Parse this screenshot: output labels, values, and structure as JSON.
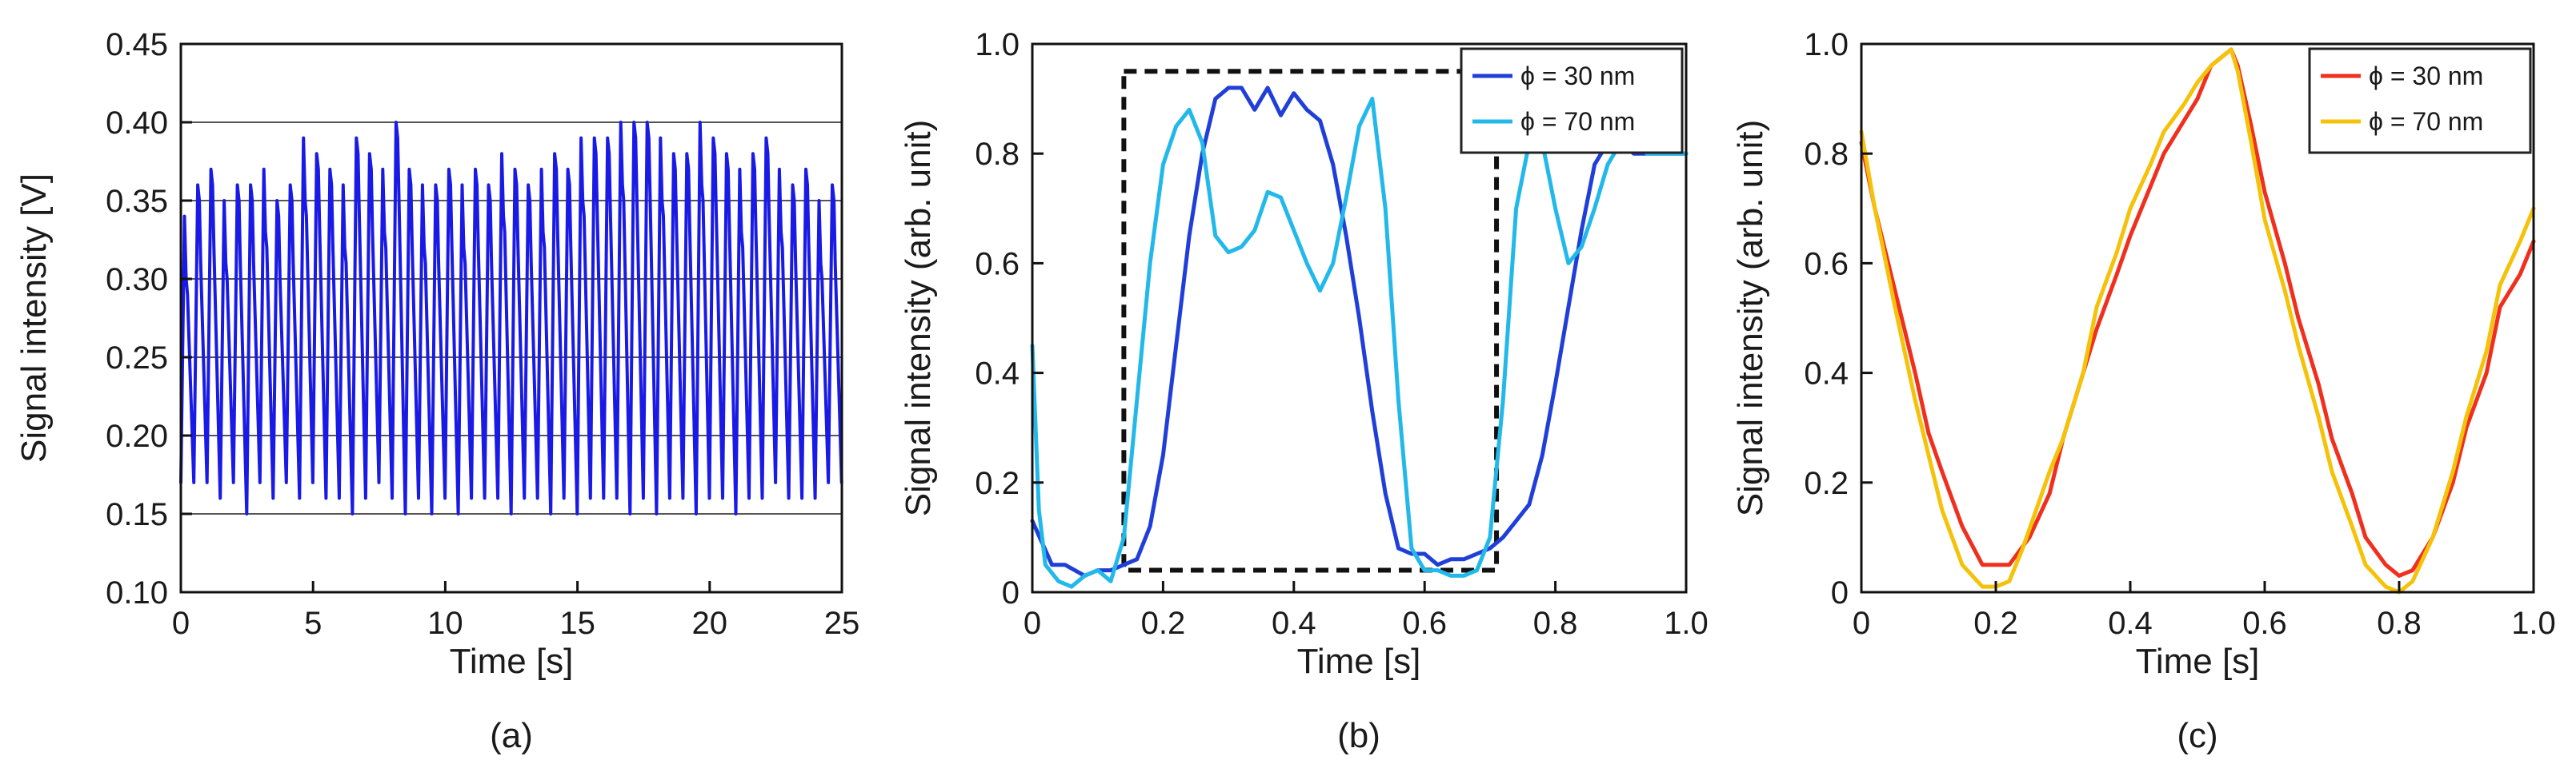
{
  "chart_data": [
    {
      "type": "line",
      "panel_label": "(a)",
      "xlabel": "Time [s]",
      "ylabel": "Signal intensity [V]",
      "xlim": [
        0,
        25
      ],
      "ylim": [
        0.1,
        0.45
      ],
      "xticks": [
        0,
        5,
        10,
        15,
        20,
        25
      ],
      "xtick_labels": [
        "0",
        "5",
        "10",
        "15",
        "20",
        "25"
      ],
      "yticks": [
        0.1,
        0.15,
        0.2,
        0.25,
        0.3,
        0.35,
        0.4,
        0.45
      ],
      "ytick_labels": [
        "0.10",
        "0.15",
        "0.20",
        "0.25",
        "0.30",
        "0.35",
        "0.40",
        "0.45"
      ],
      "grid": "horizontal",
      "series": [
        {
          "name": "signal",
          "color": "#1a1ae6",
          "period": 0.5,
          "maxima": [
            0.34,
            0.36,
            0.37,
            0.35,
            0.36,
            0.36,
            0.37,
            0.35,
            0.36,
            0.39,
            0.38,
            0.37,
            0.36,
            0.39,
            0.38,
            0.37,
            0.4,
            0.37,
            0.36,
            0.36,
            0.37,
            0.36,
            0.37,
            0.36,
            0.38,
            0.37,
            0.36,
            0.37,
            0.38,
            0.37,
            0.39,
            0.39,
            0.39,
            0.4,
            0.4,
            0.4,
            0.39,
            0.38,
            0.38,
            0.4,
            0.39,
            0.38,
            0.37,
            0.38,
            0.39,
            0.37,
            0.36,
            0.37,
            0.35,
            0.36
          ],
          "minima": [
            0.17,
            0.17,
            0.16,
            0.17,
            0.15,
            0.17,
            0.16,
            0.17,
            0.16,
            0.17,
            0.16,
            0.16,
            0.15,
            0.16,
            0.17,
            0.16,
            0.15,
            0.16,
            0.15,
            0.16,
            0.15,
            0.16,
            0.16,
            0.16,
            0.15,
            0.16,
            0.16,
            0.15,
            0.16,
            0.15,
            0.16,
            0.16,
            0.16,
            0.15,
            0.16,
            0.15,
            0.16,
            0.16,
            0.15,
            0.16,
            0.16,
            0.15,
            0.16,
            0.16,
            0.17,
            0.16,
            0.16,
            0.16,
            0.17,
            0.17
          ]
        }
      ]
    },
    {
      "type": "line",
      "panel_label": "(b)",
      "xlabel": "Time [s]",
      "ylabel": "Signal intensity (arb. unit)",
      "xlim": [
        0,
        1.0
      ],
      "ylim": [
        0,
        1.0
      ],
      "xticks": [
        0,
        0.2,
        0.4,
        0.6,
        0.8,
        1.0
      ],
      "xtick_labels": [
        "0",
        "0.2",
        "0.4",
        "0.6",
        "0.8",
        "1.0"
      ],
      "yticks": [
        0,
        0.2,
        0.4,
        0.6,
        0.8,
        1.0
      ],
      "ytick_labels": [
        "0",
        "0.2",
        "0.4",
        "0.6",
        "0.8",
        "1.0"
      ],
      "legend": "top-right",
      "series": [
        {
          "name": "ϕ = 30 nm",
          "color": "#1f3fd8",
          "x": [
            0,
            0.03,
            0.05,
            0.08,
            0.1,
            0.12,
            0.14,
            0.16,
            0.18,
            0.2,
            0.22,
            0.24,
            0.26,
            0.28,
            0.3,
            0.32,
            0.34,
            0.36,
            0.38,
            0.4,
            0.42,
            0.44,
            0.46,
            0.48,
            0.5,
            0.52,
            0.54,
            0.56,
            0.58,
            0.6,
            0.62,
            0.64,
            0.66,
            0.68,
            0.7,
            0.72,
            0.74,
            0.76,
            0.78,
            0.8,
            0.82,
            0.84,
            0.86,
            0.88,
            0.9,
            0.92,
            0.94,
            0.96,
            0.98,
            1.0
          ],
          "y": [
            0.13,
            0.05,
            0.05,
            0.03,
            0.04,
            0.04,
            0.05,
            0.06,
            0.12,
            0.25,
            0.45,
            0.65,
            0.8,
            0.9,
            0.92,
            0.92,
            0.88,
            0.92,
            0.87,
            0.91,
            0.88,
            0.86,
            0.78,
            0.65,
            0.5,
            0.33,
            0.18,
            0.08,
            0.07,
            0.07,
            0.05,
            0.06,
            0.06,
            0.07,
            0.08,
            0.1,
            0.13,
            0.16,
            0.25,
            0.38,
            0.52,
            0.66,
            0.78,
            0.82,
            0.82,
            0.8,
            0.8,
            0.8,
            0.8,
            0.8
          ]
        },
        {
          "name": "ϕ = 70 nm",
          "color": "#23b8ea",
          "x": [
            0,
            0.01,
            0.02,
            0.04,
            0.06,
            0.08,
            0.1,
            0.12,
            0.14,
            0.16,
            0.18,
            0.2,
            0.22,
            0.24,
            0.26,
            0.28,
            0.3,
            0.32,
            0.34,
            0.36,
            0.38,
            0.4,
            0.42,
            0.44,
            0.46,
            0.48,
            0.5,
            0.52,
            0.54,
            0.56,
            0.58,
            0.6,
            0.62,
            0.64,
            0.66,
            0.68,
            0.7,
            0.72,
            0.74,
            0.76,
            0.78,
            0.8,
            0.82,
            0.84,
            0.86,
            0.88,
            0.9,
            0.92,
            0.94,
            0.96,
            0.98,
            1.0
          ],
          "y": [
            0.45,
            0.15,
            0.05,
            0.02,
            0.01,
            0.03,
            0.04,
            0.02,
            0.1,
            0.35,
            0.6,
            0.78,
            0.85,
            0.88,
            0.82,
            0.65,
            0.62,
            0.63,
            0.66,
            0.73,
            0.72,
            0.66,
            0.6,
            0.55,
            0.6,
            0.72,
            0.85,
            0.9,
            0.7,
            0.35,
            0.08,
            0.04,
            0.04,
            0.03,
            0.03,
            0.04,
            0.1,
            0.35,
            0.7,
            0.82,
            0.82,
            0.7,
            0.6,
            0.63,
            0.7,
            0.78,
            0.82,
            0.82,
            0.8,
            0.8,
            0.8,
            0.8
          ]
        }
      ],
      "annotations": [
        {
          "type": "dashed-rectangle",
          "x0": 0.14,
          "x1": 0.71,
          "y0": 0.04,
          "y1": 0.95
        }
      ]
    },
    {
      "type": "line",
      "panel_label": "(c)",
      "xlabel": "Time [s]",
      "ylabel": "Signal intensity (arb. unit)",
      "xlim": [
        0,
        1.0
      ],
      "ylim": [
        0,
        1.0
      ],
      "xticks": [
        0,
        0.2,
        0.4,
        0.6,
        0.8,
        1.0
      ],
      "xtick_labels": [
        "0",
        "0.2",
        "0.4",
        "0.6",
        "0.8",
        "1.0"
      ],
      "yticks": [
        0,
        0.2,
        0.4,
        0.6,
        0.8,
        1.0
      ],
      "ytick_labels": [
        "0",
        "0.2",
        "0.4",
        "0.6",
        "0.8",
        "1.0"
      ],
      "legend": "top-right",
      "series": [
        {
          "name": "ϕ = 30 nm",
          "color": "#f0301e",
          "x": [
            0,
            0.02,
            0.05,
            0.08,
            0.1,
            0.12,
            0.15,
            0.18,
            0.2,
            0.22,
            0.25,
            0.28,
            0.3,
            0.33,
            0.35,
            0.38,
            0.4,
            0.43,
            0.45,
            0.48,
            0.5,
            0.52,
            0.54,
            0.55,
            0.56,
            0.58,
            0.6,
            0.63,
            0.65,
            0.68,
            0.7,
            0.73,
            0.75,
            0.78,
            0.8,
            0.82,
            0.85,
            0.88,
            0.9,
            0.93,
            0.95,
            0.98,
            1.0
          ],
          "y": [
            0.82,
            0.7,
            0.55,
            0.4,
            0.29,
            0.22,
            0.12,
            0.05,
            0.05,
            0.05,
            0.1,
            0.18,
            0.28,
            0.4,
            0.48,
            0.58,
            0.65,
            0.74,
            0.8,
            0.86,
            0.9,
            0.96,
            0.98,
            0.99,
            0.96,
            0.85,
            0.73,
            0.6,
            0.5,
            0.38,
            0.28,
            0.18,
            0.1,
            0.05,
            0.03,
            0.04,
            0.1,
            0.2,
            0.3,
            0.4,
            0.52,
            0.58,
            0.64
          ]
        },
        {
          "name": "ϕ = 70 nm",
          "color": "#f5c20a",
          "x": [
            0,
            0.02,
            0.05,
            0.08,
            0.1,
            0.12,
            0.15,
            0.18,
            0.2,
            0.22,
            0.24,
            0.26,
            0.28,
            0.3,
            0.33,
            0.35,
            0.38,
            0.4,
            0.43,
            0.45,
            0.48,
            0.5,
            0.52,
            0.54,
            0.55,
            0.56,
            0.58,
            0.6,
            0.63,
            0.65,
            0.68,
            0.7,
            0.73,
            0.75,
            0.78,
            0.8,
            0.82,
            0.85,
            0.88,
            0.9,
            0.93,
            0.95,
            0.98,
            1.0
          ],
          "y": [
            0.84,
            0.7,
            0.52,
            0.35,
            0.25,
            0.15,
            0.05,
            0.01,
            0.01,
            0.02,
            0.08,
            0.15,
            0.22,
            0.28,
            0.4,
            0.52,
            0.62,
            0.7,
            0.78,
            0.84,
            0.89,
            0.93,
            0.96,
            0.98,
            0.99,
            0.95,
            0.82,
            0.68,
            0.55,
            0.45,
            0.32,
            0.22,
            0.12,
            0.05,
            0.01,
            0.0,
            0.02,
            0.1,
            0.22,
            0.32,
            0.44,
            0.56,
            0.64,
            0.7
          ]
        }
      ]
    }
  ]
}
